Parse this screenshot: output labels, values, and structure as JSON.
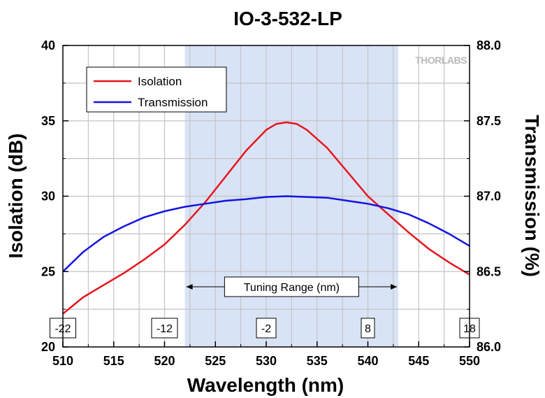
{
  "chart_data": {
    "type": "line",
    "title": "IO-3-532-LP",
    "xlabel": "Wavelength (nm)",
    "ylabel": "Isolation (dB)",
    "y2label": "Transmission (%)",
    "xlim": [
      510,
      550
    ],
    "ylim": [
      20,
      40
    ],
    "y2lim": [
      86.0,
      88.0
    ],
    "xticks": [
      510,
      515,
      520,
      525,
      530,
      535,
      540,
      545,
      550
    ],
    "yticks": [
      20,
      25,
      30,
      35,
      40
    ],
    "y2ticks": [
      "86.0",
      "86.5",
      "87.0",
      "87.5",
      "88.0"
    ],
    "grid": true,
    "legend_position": "top-left",
    "series": [
      {
        "name": "Isolation",
        "axis": "left",
        "color": "#e8141c",
        "x": [
          510,
          512,
          514,
          516,
          518,
          520,
          522,
          524,
          526,
          528,
          530,
          531,
          532,
          533,
          534,
          536,
          538,
          540,
          542,
          544,
          546,
          548,
          550
        ],
        "values": [
          22.2,
          23.3,
          24.1,
          24.9,
          25.8,
          26.8,
          28.1,
          29.6,
          31.3,
          33.0,
          34.4,
          34.8,
          34.9,
          34.8,
          34.4,
          33.2,
          31.6,
          30.0,
          28.8,
          27.6,
          26.5,
          25.6,
          24.8
        ]
      },
      {
        "name": "Transmission",
        "axis": "right",
        "color": "#1414e0",
        "x": [
          510,
          512,
          514,
          516,
          518,
          520,
          522,
          524,
          526,
          528,
          530,
          532,
          534,
          536,
          538,
          540,
          542,
          544,
          546,
          548,
          550
        ],
        "values": [
          86.5,
          86.63,
          86.73,
          86.8,
          86.86,
          86.9,
          86.93,
          86.95,
          86.97,
          86.98,
          86.995,
          87.0,
          86.995,
          86.99,
          86.97,
          86.95,
          86.92,
          86.88,
          86.82,
          86.75,
          86.67
        ]
      }
    ],
    "shaded_region": {
      "x": [
        522,
        543
      ],
      "color": "#d9e3f6",
      "label": "Tuning Range (nm)"
    },
    "tuning_markers": [
      {
        "x": 510,
        "label": "-22"
      },
      {
        "x": 520,
        "label": "-12"
      },
      {
        "x": 530,
        "label": "-2"
      },
      {
        "x": 540,
        "label": "8"
      },
      {
        "x": 550,
        "label": "18"
      }
    ]
  },
  "logo_text": "THORLABS"
}
